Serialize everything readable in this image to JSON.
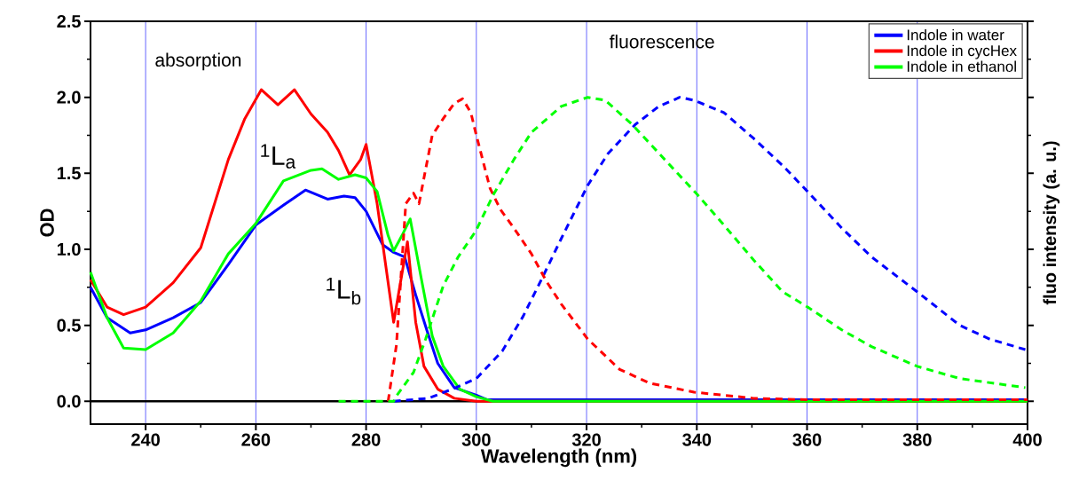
{
  "chart_data": {
    "type": "line",
    "xlabel": "Wavelength (nm)",
    "ylabel": "OD",
    "y2label": "fluo intensity (a. u.)",
    "xlim": [
      230,
      400
    ],
    "xticks": [
      240,
      260,
      280,
      300,
      320,
      340,
      360,
      380,
      400
    ],
    "ylim": [
      -0.15,
      2.5
    ],
    "yticks": [
      {
        "value": 0,
        "label": "0.0"
      },
      {
        "value": 0.5,
        "label": "0.5"
      },
      {
        "value": 1,
        "label": "1.0"
      },
      {
        "value": 1.5,
        "label": "1.5"
      },
      {
        "value": 2,
        "label": "2.0"
      },
      {
        "value": 2.5,
        "label": "2.5"
      }
    ],
    "grid": "x",
    "legend": "top right",
    "series": [
      {
        "name": "Indole in water",
        "color": "#0000ff",
        "line_style": "solid",
        "x": [
          230,
          233,
          237.2,
          240,
          245,
          250,
          255,
          260,
          265,
          269,
          273,
          276,
          278,
          280,
          283,
          285,
          287,
          289,
          291,
          293,
          296,
          300,
          302,
          400
        ],
        "values": [
          0.75,
          0.55,
          0.45,
          0.47,
          0.55,
          0.65,
          0.9,
          1.16,
          1.29,
          1.39,
          1.33,
          1.35,
          1.34,
          1.25,
          1.03,
          0.98,
          0.95,
          0.7,
          0.47,
          0.25,
          0.09,
          0.04,
          0.01,
          0.01
        ]
      },
      {
        "name": "Indole in cycHex",
        "color": "#ff0000",
        "line_style": "solid",
        "x": [
          230,
          233,
          236,
          240,
          245,
          250,
          255,
          258,
          261,
          264,
          267,
          270,
          273,
          275,
          277,
          279,
          280,
          282,
          285,
          287.5,
          289,
          290.5,
          293,
          296,
          300,
          400
        ],
        "values": [
          0.8,
          0.62,
          0.57,
          0.62,
          0.78,
          1.01,
          1.59,
          1.86,
          2.05,
          1.95,
          2.05,
          1.89,
          1.77,
          1.65,
          1.49,
          1.59,
          1.69,
          1.3,
          0.52,
          1.05,
          0.52,
          0.23,
          0.08,
          0.02,
          0,
          0
        ]
      },
      {
        "name": "Indole in ethanol",
        "color": "#00ff00",
        "line_style": "solid",
        "x": [
          230,
          233,
          236,
          240,
          245,
          250,
          255,
          260,
          265,
          270,
          272,
          275,
          278,
          280,
          282,
          284,
          285,
          286.5,
          288,
          290,
          292,
          294,
          297,
          300,
          303,
          400
        ],
        "values": [
          0.85,
          0.55,
          0.35,
          0.34,
          0.45,
          0.66,
          0.97,
          1.17,
          1.45,
          1.52,
          1.53,
          1.46,
          1.49,
          1.47,
          1.38,
          1.09,
          0.99,
          1.09,
          1.2,
          0.81,
          0.43,
          0.23,
          0.08,
          0.03,
          0,
          0
        ]
      },
      {
        "color": "#0000ff",
        "line_style": "dashed",
        "x": [
          285,
          291.3,
          295.6,
          300,
          304.7,
          308.5,
          312.2,
          315.4,
          320.2,
          323.9,
          328.8,
          333.1,
          336.9,
          339.5,
          344.9,
          350.3,
          355.6,
          360.1,
          366.3,
          371.7,
          380,
          387.7,
          393.1,
          399.6
        ],
        "values": [
          0,
          0.02,
          0.08,
          0.15,
          0.33,
          0.56,
          0.83,
          1.07,
          1.42,
          1.63,
          1.82,
          1.94,
          2.0,
          1.98,
          1.9,
          1.73,
          1.55,
          1.38,
          1.14,
          0.95,
          0.72,
          0.5,
          0.41,
          0.34
        ]
      },
      {
        "color": "#ff0000",
        "line_style": "dashed",
        "x": [
          284,
          285.5,
          287.2,
          288.6,
          289.6,
          290.5,
          292,
          294,
          296,
          297.5,
          299,
          300,
          302.5,
          304.4,
          306.8,
          310,
          312.7,
          315.4,
          320.2,
          326,
          331.4,
          339.5,
          350.3,
          360,
          400
        ],
        "values": [
          0,
          0.37,
          1.3,
          1.37,
          1.3,
          1.47,
          1.75,
          1.86,
          1.96,
          1.99,
          1.9,
          1.75,
          1.4,
          1.26,
          1.14,
          0.97,
          0.79,
          0.64,
          0.41,
          0.21,
          0.12,
          0.06,
          0.02,
          0.01,
          0.01
        ]
      },
      {
        "color": "#00ff00",
        "line_style": "dashed",
        "x": [
          275,
          285,
          285.4,
          288.6,
          290.8,
          294,
          296.7,
          299.9,
          303.1,
          306.8,
          310,
          315.4,
          320.2,
          323.4,
          328.3,
          334.2,
          340.1,
          344.9,
          350.3,
          355.6,
          360.1,
          366.3,
          371.7,
          380,
          387.7,
          399.6
        ],
        "values": [
          0,
          0,
          0.03,
          0.19,
          0.41,
          0.76,
          0.95,
          1.12,
          1.36,
          1.59,
          1.77,
          1.94,
          2.0,
          1.98,
          1.82,
          1.59,
          1.36,
          1.16,
          0.93,
          0.72,
          0.62,
          0.47,
          0.36,
          0.23,
          0.15,
          0.09
        ]
      }
    ],
    "ref_lines": [
      {
        "axis": "y",
        "value": 0,
        "color": "#000000"
      }
    ],
    "annotations": [
      "absorption",
      "fluorescence",
      "$^{1}$L$_{a}$",
      "$^{1}$L$_{b}$"
    ]
  }
}
